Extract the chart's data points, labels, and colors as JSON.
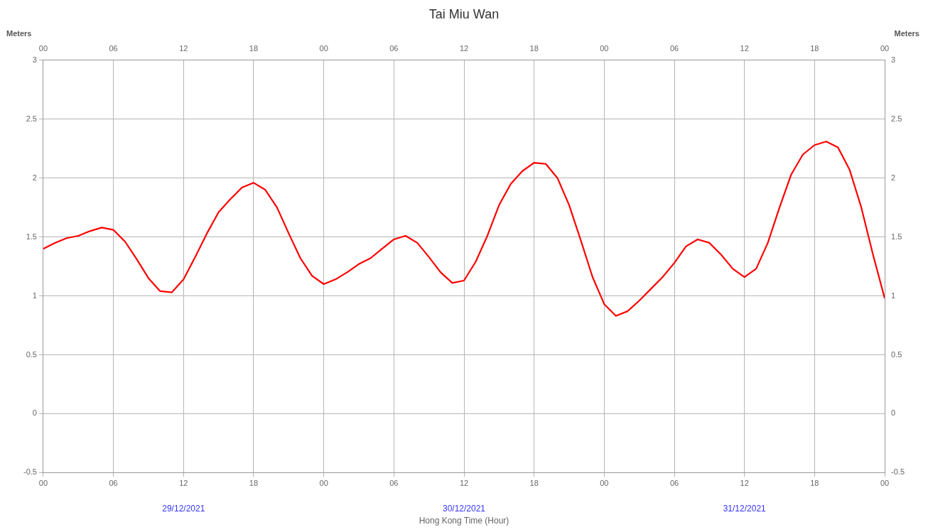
{
  "chart_data": {
    "type": "line",
    "title": "Tai Miu Wan",
    "xlabel": "Hong Kong Time (Hour)",
    "ylabel": "Meters",
    "y2label": "Meters",
    "x": [
      "2021-12-29T00:00",
      "2021-12-29T01:00",
      "2021-12-29T02:00",
      "2021-12-29T03:00",
      "2021-12-29T04:00",
      "2021-12-29T05:00",
      "2021-12-29T06:00",
      "2021-12-29T07:00",
      "2021-12-29T08:00",
      "2021-12-29T09:00",
      "2021-12-29T10:00",
      "2021-12-29T11:00",
      "2021-12-29T12:00",
      "2021-12-29T13:00",
      "2021-12-29T14:00",
      "2021-12-29T15:00",
      "2021-12-29T16:00",
      "2021-12-29T17:00",
      "2021-12-29T18:00",
      "2021-12-29T19:00",
      "2021-12-29T20:00",
      "2021-12-29T21:00",
      "2021-12-29T22:00",
      "2021-12-29T23:00",
      "2021-12-30T00:00",
      "2021-12-30T01:00",
      "2021-12-30T02:00",
      "2021-12-30T03:00",
      "2021-12-30T04:00",
      "2021-12-30T05:00",
      "2021-12-30T06:00",
      "2021-12-30T07:00",
      "2021-12-30T08:00",
      "2021-12-30T09:00",
      "2021-12-30T10:00",
      "2021-12-30T11:00",
      "2021-12-30T12:00",
      "2021-12-30T13:00",
      "2021-12-30T14:00",
      "2021-12-30T15:00",
      "2021-12-30T16:00",
      "2021-12-30T17:00",
      "2021-12-30T18:00",
      "2021-12-30T19:00",
      "2021-12-30T20:00",
      "2021-12-30T21:00",
      "2021-12-30T22:00",
      "2021-12-30T23:00",
      "2021-12-31T00:00",
      "2021-12-31T01:00",
      "2021-12-31T02:00",
      "2021-12-31T03:00",
      "2021-12-31T04:00",
      "2021-12-31T05:00",
      "2021-12-31T06:00",
      "2021-12-31T07:00",
      "2021-12-31T08:00",
      "2021-12-31T09:00",
      "2021-12-31T10:00",
      "2021-12-31T11:00",
      "2021-12-31T12:00",
      "2021-12-31T13:00",
      "2021-12-31T14:00",
      "2021-12-31T15:00",
      "2021-12-31T16:00",
      "2021-12-31T17:00",
      "2021-12-31T18:00",
      "2021-12-31T19:00",
      "2021-12-31T20:00",
      "2021-12-31T21:00",
      "2021-12-31T22:00",
      "2021-12-31T23:00",
      "2022-01-01T00:00"
    ],
    "series": [
      {
        "color": "#ff0000",
        "values": [
          1.4,
          1.45,
          1.49,
          1.51,
          1.55,
          1.58,
          1.56,
          1.46,
          1.31,
          1.15,
          1.04,
          1.03,
          1.14,
          1.33,
          1.53,
          1.71,
          1.82,
          1.92,
          1.96,
          1.9,
          1.75,
          1.53,
          1.32,
          1.17,
          1.1,
          1.14,
          1.2,
          1.27,
          1.32,
          1.4,
          1.48,
          1.51,
          1.45,
          1.33,
          1.2,
          1.11,
          1.13,
          1.29,
          1.51,
          1.77,
          1.95,
          2.06,
          2.13,
          2.12,
          2.0,
          1.77,
          1.47,
          1.16,
          0.93,
          0.83,
          0.87,
          0.96,
          1.06,
          1.16,
          1.28,
          1.42,
          1.48,
          1.45,
          1.35,
          1.23,
          1.16,
          1.23,
          1.45,
          1.75,
          2.03,
          2.2,
          2.28,
          2.31,
          2.26,
          2.07,
          1.75,
          1.35,
          0.98
        ]
      }
    ],
    "xlim": [
      "2021-12-29T00:00",
      "2022-01-01T00:00"
    ],
    "xticks": [
      {
        "value": "2021-12-29T00:00",
        "label": "00"
      },
      {
        "value": "2021-12-29T06:00",
        "label": "06"
      },
      {
        "value": "2021-12-29T12:00",
        "label": "12"
      },
      {
        "value": "2021-12-29T18:00",
        "label": "18"
      },
      {
        "value": "2021-12-30T00:00",
        "label": "00"
      },
      {
        "value": "2021-12-30T06:00",
        "label": "06"
      },
      {
        "value": "2021-12-30T12:00",
        "label": "12"
      },
      {
        "value": "2021-12-30T18:00",
        "label": "18"
      },
      {
        "value": "2021-12-31T00:00",
        "label": "00"
      },
      {
        "value": "2021-12-31T06:00",
        "label": "06"
      },
      {
        "value": "2021-12-31T12:00",
        "label": "12"
      },
      {
        "value": "2021-12-31T18:00",
        "label": "18"
      },
      {
        "value": "2022-01-01T00:00",
        "label": "00"
      }
    ],
    "x2lim": [
      "2021-12-29T00:00",
      "2022-01-01T00:00"
    ],
    "x2ticks": [
      {
        "value": "2021-12-29T00:00",
        "label": "00"
      },
      {
        "value": "2021-12-29T06:00",
        "label": "06"
      },
      {
        "value": "2021-12-29T12:00",
        "label": "12"
      },
      {
        "value": "2021-12-29T18:00",
        "label": "18"
      },
      {
        "value": "2021-12-30T00:00",
        "label": "00"
      },
      {
        "value": "2021-12-30T06:00",
        "label": "06"
      },
      {
        "value": "2021-12-30T12:00",
        "label": "12"
      },
      {
        "value": "2021-12-30T18:00",
        "label": "18"
      },
      {
        "value": "2021-12-31T00:00",
        "label": "00"
      },
      {
        "value": "2021-12-31T06:00",
        "label": "06"
      },
      {
        "value": "2021-12-31T12:00",
        "label": "12"
      },
      {
        "value": "2021-12-31T18:00",
        "label": "18"
      },
      {
        "value": "2022-01-01T00:00",
        "label": "00"
      }
    ],
    "ylim": [
      -0.5,
      3
    ],
    "yticks": [
      -0.5,
      0,
      0.5,
      1,
      1.5,
      2,
      2.5,
      3
    ],
    "y2lim": [
      -0.5,
      3
    ],
    "y2ticks": [
      -0.5,
      0,
      0.5,
      1,
      1.5,
      2,
      2.5,
      3
    ],
    "grid": true,
    "legend": false,
    "marker": "none",
    "line_style": "solid",
    "annotations": [
      "29/12/2021",
      "30/12/2021",
      "31/12/2021"
    ]
  }
}
